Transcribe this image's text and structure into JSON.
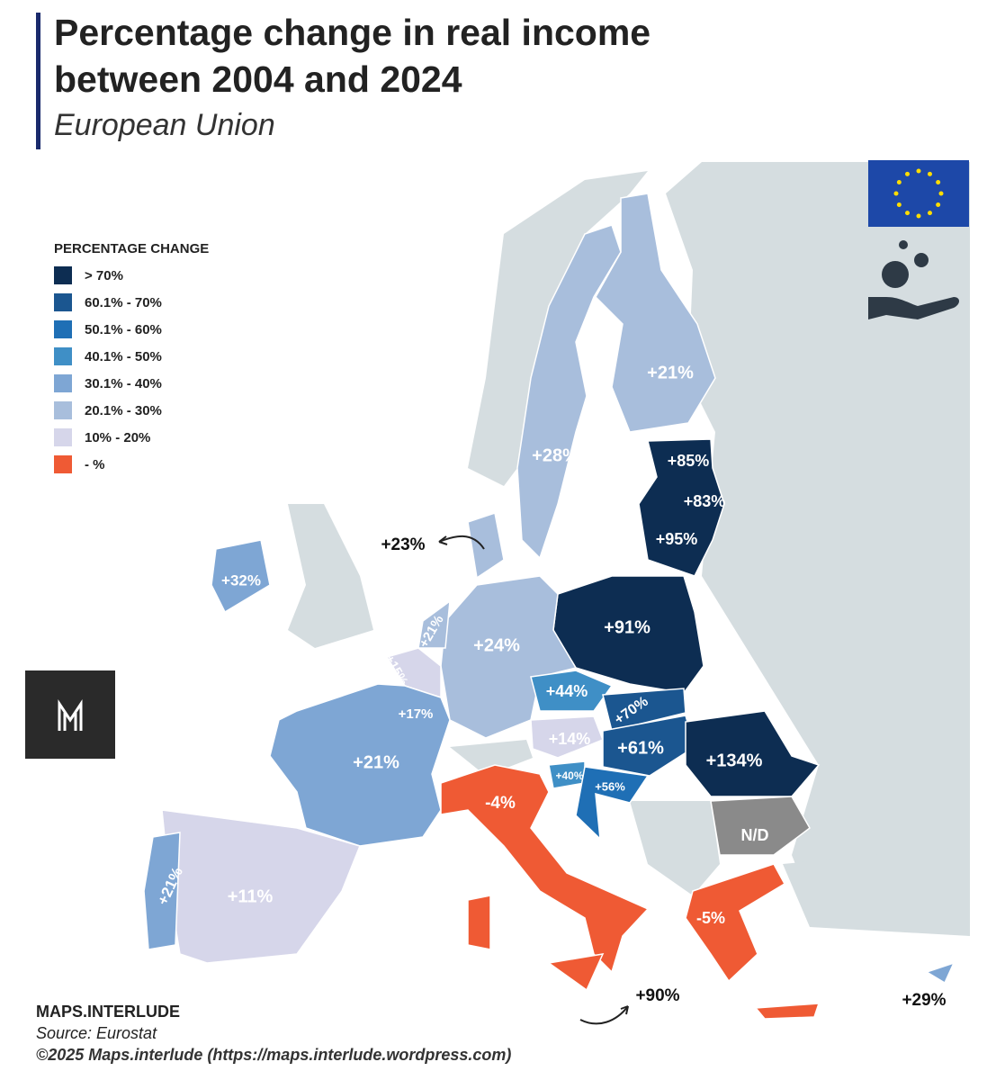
{
  "header": {
    "title": "Percentage change in real income between 2004 and 2024",
    "subtitle": "European Union"
  },
  "legend": {
    "title": "PERCENTAGE CHANGE",
    "items": [
      {
        "label": "> 70%",
        "color": "#0d2d52"
      },
      {
        "label": "60.1% - 70%",
        "color": "#1b5690"
      },
      {
        "label": "50.1% - 60%",
        "color": "#1f6fb5"
      },
      {
        "label": "40.1% - 50%",
        "color": "#3f8fc6"
      },
      {
        "label": "30.1% - 40%",
        "color": "#7ea6d4"
      },
      {
        "label": "20.1% - 30%",
        "color": "#a8bedc"
      },
      {
        "label": "10% - 20%",
        "color": "#d6d6ea"
      },
      {
        "label": "- %",
        "color": "#ef5a34"
      }
    ]
  },
  "map_labels": [
    "+21%",
    "+28%",
    "+85%",
    "+83%",
    "+95%",
    "+23%",
    "+32%",
    "+21%",
    "+15%",
    "+24%",
    "+91%",
    "+44%",
    "+70%",
    "+17%",
    "+14%",
    "+61%",
    "+134%",
    "+21%",
    "+40%",
    "+56%",
    "-4%",
    "N/D",
    "+21%",
    "+11%",
    "-5%",
    "+90%",
    "+29%"
  ],
  "footer": {
    "brand": "MAPS.INTERLUDE",
    "source": "Source: Eurostat",
    "copyright": "©2025 Maps.interlude (https://maps.interlude.wordpress.com)"
  }
}
